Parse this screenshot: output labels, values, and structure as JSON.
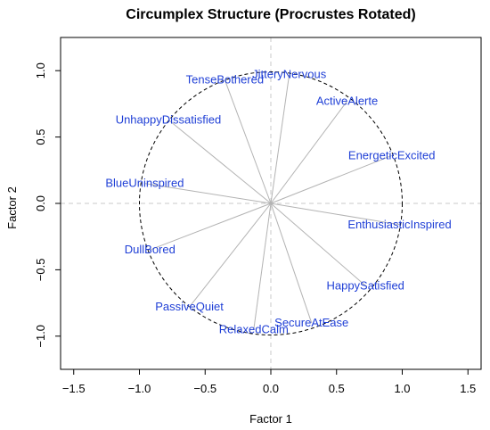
{
  "chart_data": {
    "type": "scatter",
    "title": "Circumplex Structure (Procrustes Rotated)",
    "xlabel": "Factor 1",
    "ylabel": "Factor 2",
    "xlim": [
      -1.6,
      1.6
    ],
    "ylim": [
      -1.25,
      1.25
    ],
    "x_ticks": [
      -1.5,
      -1.0,
      -0.5,
      0.0,
      0.5,
      1.0,
      1.5
    ],
    "x_tick_labels": [
      "−1.5",
      "−1.0",
      "−0.5",
      "0.0",
      "0.5",
      "1.0",
      "1.5"
    ],
    "y_ticks": [
      -1.0,
      -0.5,
      0.0,
      0.5,
      1.0
    ],
    "y_tick_labels": [
      "−1.0",
      "−0.5",
      "0.0",
      "0.5",
      "1.0"
    ],
    "unit_circle": true,
    "reference_lines": [
      0,
      0
    ],
    "colors": {
      "label": "#1f3fd6",
      "vector": "#b3b3b3",
      "circle": "#000000",
      "reference": "#c8c8c8"
    },
    "points": [
      {
        "label": "JitteryNervous",
        "x": 0.14,
        "y": 0.97
      },
      {
        "label": "TenseBothered",
        "x": -0.35,
        "y": 0.93
      },
      {
        "label": "ActiveAlerte",
        "x": 0.58,
        "y": 0.77
      },
      {
        "label": "UnhappyDissatisfied",
        "x": -0.78,
        "y": 0.63
      },
      {
        "label": "EnergeticExcited",
        "x": 0.92,
        "y": 0.36
      },
      {
        "label": "BlueUninspired",
        "x": -0.96,
        "y": 0.15
      },
      {
        "label": "EnthusiasticInspired",
        "x": 0.98,
        "y": -0.16
      },
      {
        "label": "DullBored",
        "x": -0.92,
        "y": -0.35
      },
      {
        "label": "HappySatisfied",
        "x": 0.72,
        "y": -0.62
      },
      {
        "label": "PassiveQuiet",
        "x": -0.62,
        "y": -0.78
      },
      {
        "label": "RelaxedCalm",
        "x": -0.13,
        "y": -0.95
      },
      {
        "label": "SecureAtEase",
        "x": 0.31,
        "y": -0.9
      }
    ]
  }
}
